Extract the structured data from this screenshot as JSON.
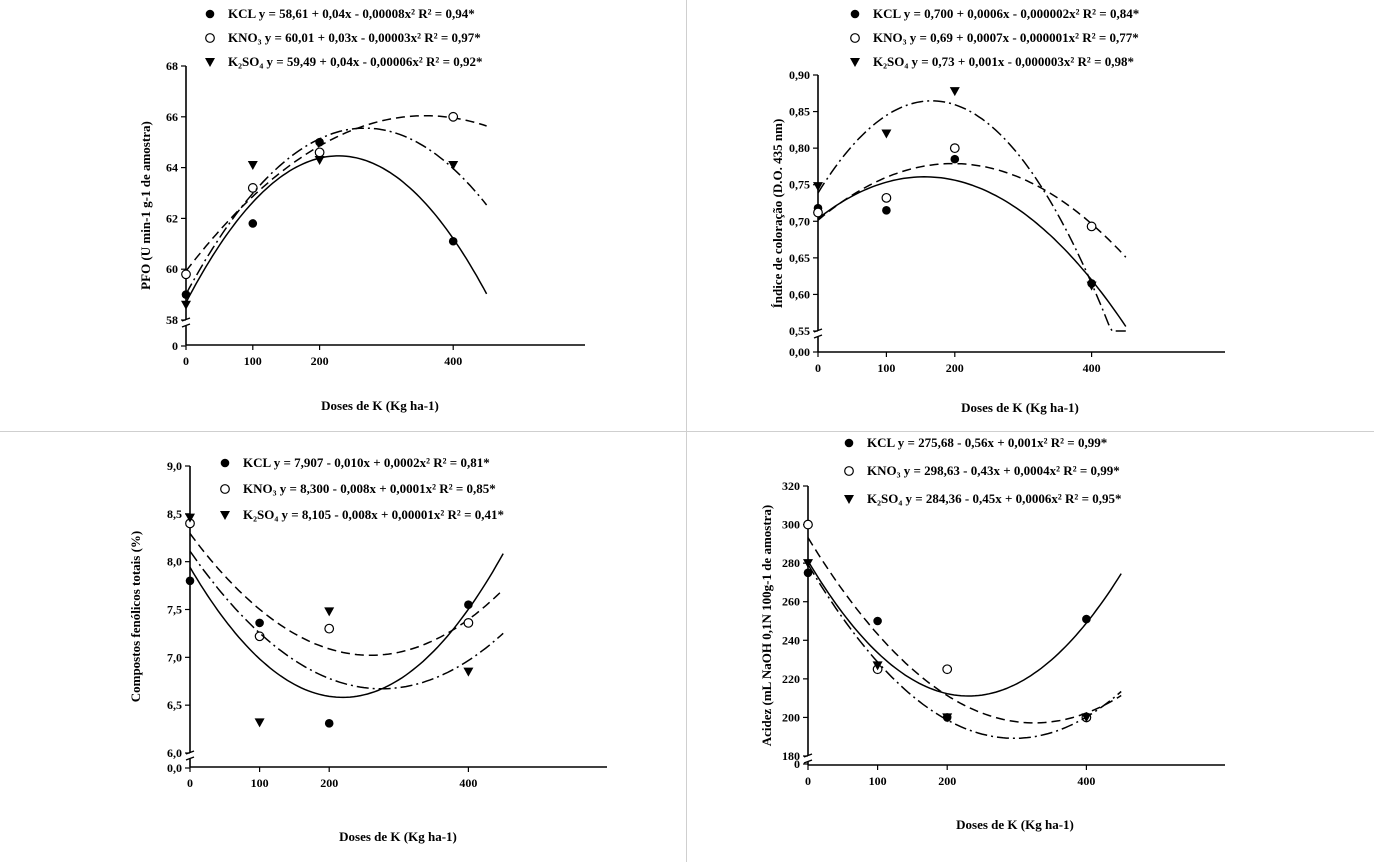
{
  "page": {
    "background": "#ffffff",
    "divider_color": "#cfcfcf"
  },
  "chart_data": [
    {
      "id": "pfo",
      "type": "scatter",
      "xlabel": "Doses de K (Kg ha-1)",
      "ylabel": "PFO (U min-1 g-1 de amostra)",
      "x_ticks": [
        "0",
        "100",
        "200",
        "400"
      ],
      "y_ticks": [
        "0",
        "58",
        "60",
        "62",
        "64",
        "66",
        "68"
      ],
      "xlim": [
        0,
        600
      ],
      "ylim_broken": [
        58,
        68
      ],
      "legend_position": "top",
      "series": [
        {
          "name": "KCL",
          "marker": "filled-circle",
          "line": "solid",
          "equation": "y = 58,61 + 0,04x - 0,00008x² R² = 0,94*",
          "x": [
            0,
            100,
            200,
            400
          ],
          "y": [
            59.0,
            61.8,
            65.0,
            61.1
          ]
        },
        {
          "name": "KNO₃",
          "marker": "open-circle",
          "line": "dashed",
          "equation": "y = 60,01 + 0,03x - 0,00003x² R² = 0,97*",
          "x": [
            0,
            100,
            200,
            400
          ],
          "y": [
            59.8,
            63.2,
            64.6,
            66.0
          ]
        },
        {
          "name": "K₂SO₄",
          "marker": "filled-triangle",
          "line": "dash-dot",
          "equation": "y = 59,49 + 0,04x - 0,00006x² R² = 0,92*",
          "x": [
            0,
            100,
            200,
            400
          ],
          "y": [
            58.6,
            64.1,
            64.3,
            64.1
          ]
        }
      ]
    },
    {
      "id": "coloracao",
      "type": "scatter",
      "xlabel": "Doses de K (Kg ha-1)",
      "ylabel": "Índice de coloração (D.O. 435 nm)",
      "x_ticks": [
        "0",
        "100",
        "200",
        "400"
      ],
      "y_ticks": [
        "0,00",
        "0,55",
        "0,60",
        "0,65",
        "0,70",
        "0,75",
        "0,80",
        "0,85",
        "0,90"
      ],
      "xlim": [
        0,
        600
      ],
      "ylim_broken": [
        0.55,
        0.9
      ],
      "legend_position": "top",
      "series": [
        {
          "name": "KCL",
          "marker": "filled-circle",
          "line": "solid",
          "equation": "y = 0,700 + 0,0006x - 0,000002x² R² = 0,84*",
          "x": [
            0,
            100,
            200,
            400
          ],
          "y": [
            0.718,
            0.715,
            0.785,
            0.615
          ]
        },
        {
          "name": "KNO₃",
          "marker": "open-circle",
          "line": "dashed",
          "equation": "y = 0,69 + 0,0007x - 0,000001x² R² = 0,77*",
          "x": [
            0,
            100,
            200,
            400
          ],
          "y": [
            0.712,
            0.732,
            0.8,
            0.693
          ]
        },
        {
          "name": "K₂SO₄",
          "marker": "filled-triangle",
          "line": "dash-dot",
          "equation": "y = 0,73 + 0,001x - 0,000003x² R² = 0,98*",
          "x": [
            0,
            100,
            200,
            400
          ],
          "y": [
            0.748,
            0.82,
            0.878,
            0.612
          ]
        }
      ]
    },
    {
      "id": "fenolicos",
      "type": "scatter",
      "xlabel": "Doses de K (Kg ha-1)",
      "ylabel": "Compostos fenólicos totais (%)",
      "x_ticks": [
        "0",
        "100",
        "200",
        "400"
      ],
      "y_ticks": [
        "0,0",
        "6,0",
        "6,5",
        "7,0",
        "7,5",
        "8,0",
        "8,5",
        "9,0"
      ],
      "xlim": [
        0,
        600
      ],
      "ylim_broken": [
        6.0,
        9.0
      ],
      "legend_position": "top",
      "series": [
        {
          "name": "KCL",
          "marker": "filled-circle",
          "line": "solid",
          "equation": "y = 7,907 - 0,010x + 0,0002x² R² = 0,81*",
          "x": [
            0,
            100,
            200,
            400
          ],
          "y": [
            7.8,
            7.36,
            6.31,
            7.55
          ]
        },
        {
          "name": "KNO₃",
          "marker": "open-circle",
          "line": "dashed",
          "equation": "y = 8,300 - 0,008x + 0,0001x² R² = 0,85*",
          "x": [
            0,
            100,
            200,
            400
          ],
          "y": [
            8.4,
            7.22,
            7.3,
            7.36
          ]
        },
        {
          "name": "K₂SO₄",
          "marker": "filled-triangle",
          "line": "dash-dot",
          "equation": "y = 8,105 - 0,008x + 0,00001x² R² = 0,41*",
          "x": [
            0,
            100,
            200,
            400
          ],
          "y": [
            8.46,
            6.32,
            7.48,
            6.85
          ]
        }
      ]
    },
    {
      "id": "acidez",
      "type": "scatter",
      "xlabel": "Doses de K (Kg ha-1)",
      "ylabel": "Acidez (mL NaOH 0,1N 100g-1 de amostra)",
      "x_ticks": [
        "0",
        "100",
        "200",
        "400"
      ],
      "y_ticks": [
        "0",
        "180",
        "200",
        "220",
        "240",
        "260",
        "280",
        "300",
        "320"
      ],
      "xlim": [
        0,
        600
      ],
      "ylim_broken": [
        180,
        320
      ],
      "legend_position": "top",
      "series": [
        {
          "name": "KCL",
          "marker": "filled-circle",
          "line": "solid",
          "equation": "y = 275,68 - 0,56x + 0,001x² R² = 0,99*",
          "x": [
            0,
            100,
            200,
            400
          ],
          "y": [
            275,
            250,
            200,
            251
          ]
        },
        {
          "name": "KNO₃",
          "marker": "open-circle",
          "line": "dashed",
          "equation": "y = 298,63 - 0,43x + 0,0004x² R² = 0,99*",
          "x": [
            0,
            100,
            200,
            400
          ],
          "y": [
            300,
            225,
            225,
            200
          ]
        },
        {
          "name": "K₂SO₄",
          "marker": "filled-triangle",
          "line": "dash-dot",
          "equation": "y = 284,36 - 0,45x + 0,0006x² R² = 0,95*",
          "x": [
            0,
            100,
            200,
            400
          ],
          "y": [
            280,
            227,
            200,
            200
          ]
        }
      ]
    }
  ]
}
